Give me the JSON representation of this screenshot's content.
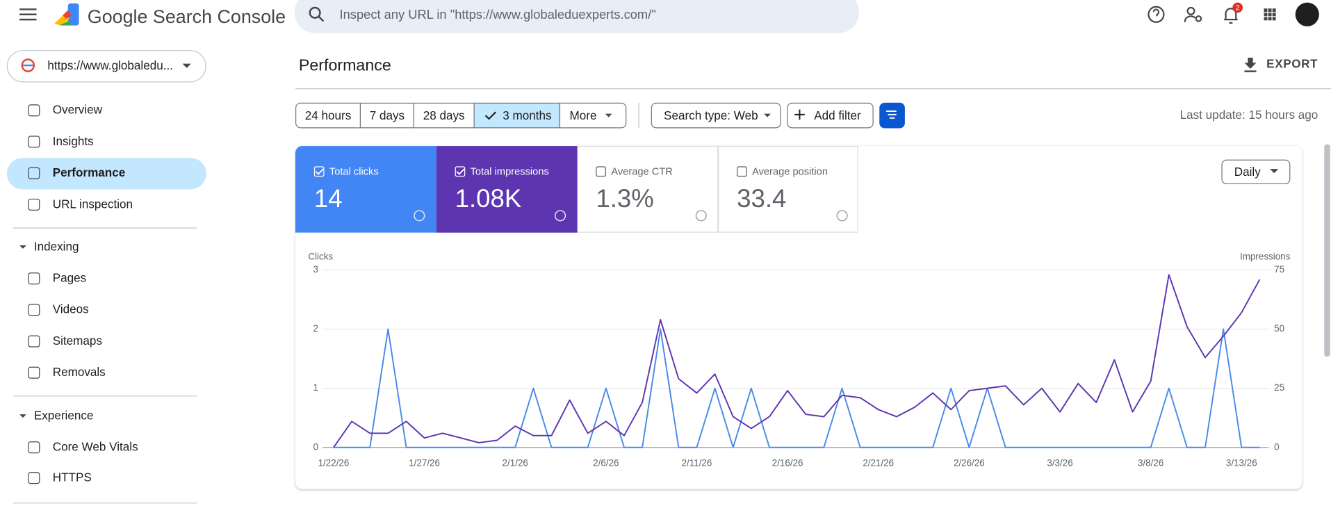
{
  "header": {
    "product": "Google Search Console",
    "search_placeholder": "Inspect any URL in \"https://www.globaleduexperts.com/\"",
    "notification_count": 2
  },
  "sidebar": {
    "property": "https://www.globaledu...",
    "nav": [
      "Overview",
      "Insights",
      "Performance",
      "URL inspection"
    ],
    "groups": [
      {
        "title": "Indexing",
        "items": [
          "Pages",
          "Videos",
          "Sitemaps",
          "Removals"
        ]
      },
      {
        "title": "Experience",
        "items": [
          "Core Web Vitals",
          "HTTPS"
        ]
      }
    ]
  },
  "page": {
    "title": "Performance",
    "export": "EXPORT",
    "date_ranges": [
      "24 hours",
      "7 days",
      "28 days",
      "3 months",
      "More"
    ],
    "search_type": "Search type: Web",
    "add_filter": "Add filter",
    "last_update": "Last update: 15 hours ago",
    "granularity": "Daily"
  },
  "metrics": [
    {
      "label": "Total clicks",
      "value": "14"
    },
    {
      "label": "Total impressions",
      "value": "1.08K"
    },
    {
      "label": "Average CTR",
      "value": "1.3%"
    },
    {
      "label": "Average position",
      "value": "33.4"
    }
  ],
  "chart_data": {
    "type": "line",
    "categories": [
      "1/22/26",
      null,
      null,
      null,
      null,
      "1/27/26",
      null,
      null,
      null,
      null,
      "2/1/26",
      null,
      null,
      null,
      null,
      "2/6/26",
      null,
      null,
      null,
      null,
      "2/11/26",
      null,
      null,
      null,
      null,
      "2/16/26",
      null,
      null,
      null,
      null,
      "2/21/26",
      null,
      null,
      null,
      null,
      "2/26/26",
      null,
      null,
      null,
      null,
      "3/3/26",
      null,
      null,
      null,
      null,
      "3/8/26",
      null,
      null,
      null,
      null,
      "3/13/26",
      null
    ],
    "series": [
      {
        "name": "Clicks",
        "color": "#4a8ae8",
        "values": [
          0,
          0,
          0,
          2,
          0,
          0,
          0,
          0,
          0,
          0,
          0,
          1,
          0,
          0,
          0,
          1,
          0,
          0,
          2,
          0,
          0,
          1,
          0,
          1,
          0,
          0,
          0,
          0,
          1,
          0,
          0,
          0,
          0,
          0,
          1,
          0,
          1,
          0,
          0,
          0,
          0,
          0,
          0,
          0,
          0,
          0,
          1,
          0,
          0,
          2,
          0,
          0
        ]
      },
      {
        "name": "Impressions",
        "color": "#5e35b1",
        "axis": "y2",
        "values": [
          0,
          11,
          6,
          6,
          11,
          4,
          6,
          4,
          2,
          3,
          9,
          5,
          5,
          20,
          6,
          11,
          5,
          19,
          54,
          29,
          23,
          31,
          13,
          8,
          13,
          24,
          14,
          13,
          22,
          21,
          16,
          13,
          17,
          23,
          16,
          24,
          25,
          26,
          18,
          25,
          15,
          27,
          19,
          37,
          15,
          28,
          73,
          51,
          38,
          47,
          57,
          71
        ]
      }
    ],
    "ylim": [
      0,
      3
    ],
    "yticks": [
      0,
      1,
      2,
      3
    ],
    "y2lim": [
      0,
      75
    ],
    "y2ticks": [
      0,
      25,
      50,
      75
    ],
    "grid": true
  }
}
